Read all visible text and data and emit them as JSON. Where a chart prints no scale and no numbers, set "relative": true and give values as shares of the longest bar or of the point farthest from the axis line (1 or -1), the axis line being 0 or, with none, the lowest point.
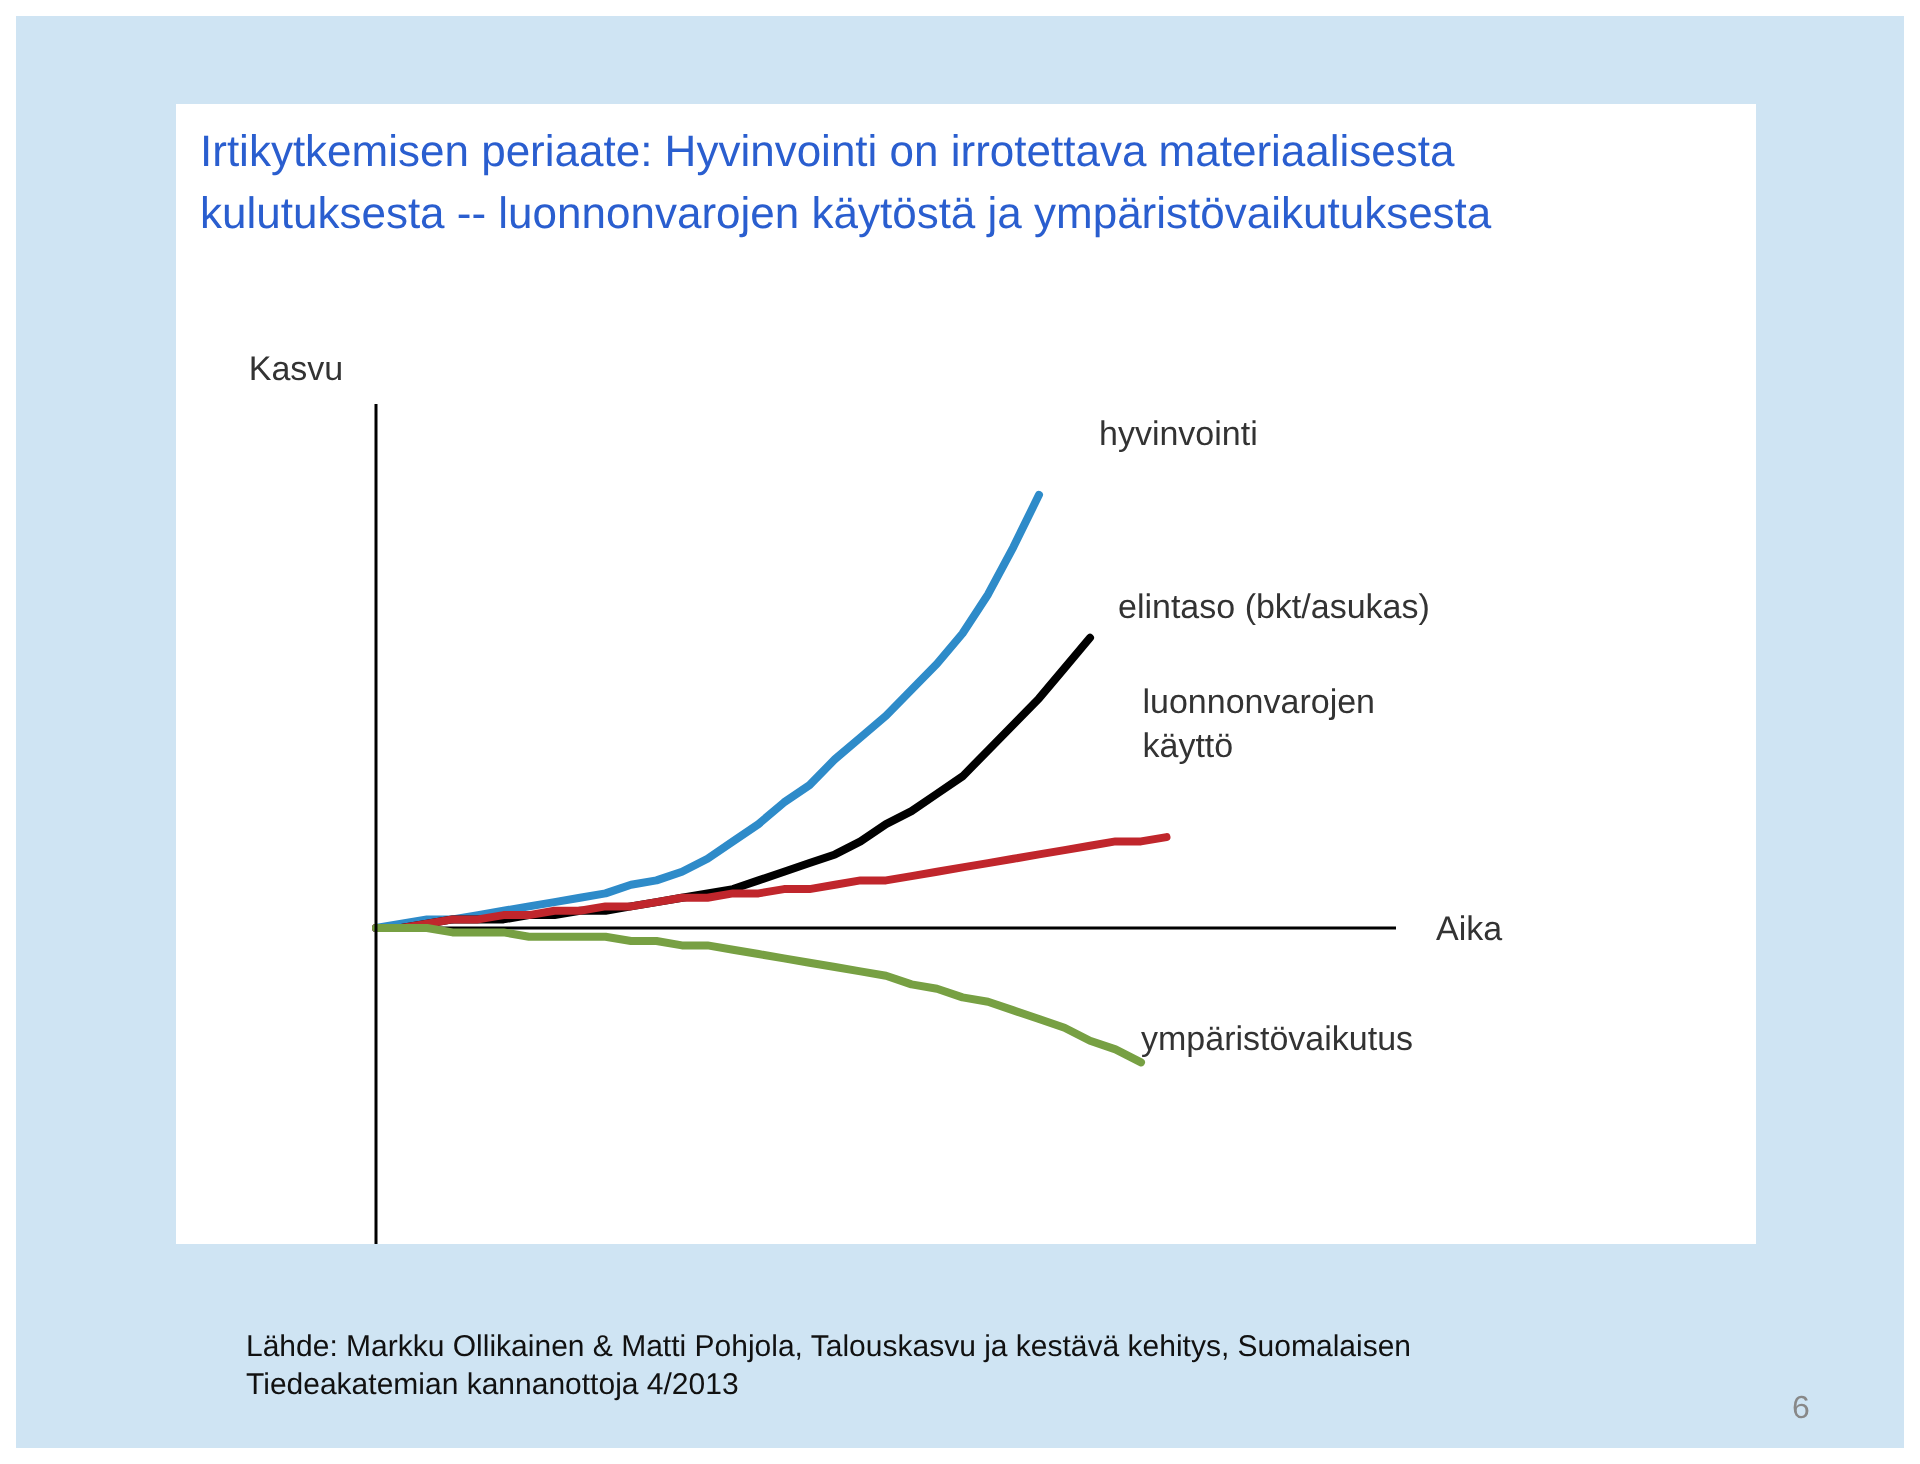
{
  "chart_data": {
    "type": "line",
    "relative": true,
    "title": "Irtikytkemisen periaate: Hyvinvointi on irrotettava materiaalisesta kulutuksesta -- luonnonvarojen käytöstä ja ympäristövaikutuksesta",
    "xlabel": "Aika",
    "ylabel": "Kasvu",
    "categories": [
      null,
      null,
      null,
      null,
      null,
      null,
      null,
      null,
      null,
      null,
      null,
      null,
      null,
      null,
      null,
      null,
      null,
      null,
      null,
      null,
      null,
      null,
      null,
      null,
      null,
      null,
      null,
      null,
      null,
      null,
      null,
      null,
      null,
      null,
      null,
      null,
      null,
      null,
      null,
      null,
      null
    ],
    "series": [
      {
        "name": "hyvinvointi",
        "color": "#2e8bc9",
        "values": [
          0,
          0.01,
          0.02,
          0.02,
          0.03,
          0.04,
          0.05,
          0.06,
          0.07,
          0.08,
          0.1,
          0.11,
          0.13,
          0.16,
          0.2,
          0.24,
          0.29,
          0.33,
          0.39,
          0.44,
          0.49,
          0.55,
          0.61,
          0.68,
          0.77,
          0.88,
          1,
          null,
          null,
          null,
          null,
          null,
          null,
          null,
          null,
          null,
          null,
          null,
          null,
          null,
          null
        ]
      },
      {
        "name": "elintaso (bkt/asukas)",
        "color": "#000000",
        "values": [
          0,
          0,
          0.01,
          0.02,
          0.02,
          0.02,
          0.03,
          0.03,
          0.04,
          0.04,
          0.05,
          0.06,
          0.07,
          0.08,
          0.09,
          0.11,
          0.13,
          0.15,
          0.17,
          0.2,
          0.24,
          0.27,
          0.31,
          0.35,
          0.41,
          0.47,
          0.53,
          0.6,
          0.67,
          null,
          null,
          null,
          null,
          null,
          null,
          null,
          null,
          null,
          null,
          null,
          null
        ]
      },
      {
        "name": "luonnonvarojen käyttö",
        "color": "#c0262c",
        "values": [
          0,
          0,
          0.01,
          0.02,
          0.02,
          0.03,
          0.03,
          0.04,
          0.04,
          0.05,
          0.05,
          0.06,
          0.07,
          0.07,
          0.08,
          0.08,
          0.09,
          0.09,
          0.1,
          0.11,
          0.11,
          0.12,
          0.13,
          0.14,
          0.15,
          0.16,
          0.17,
          0.18,
          0.19,
          0.2,
          0.2,
          0.21,
          null,
          null,
          null,
          null,
          null,
          null,
          null,
          null,
          null
        ]
      },
      {
        "name": "ympäristövaikutus",
        "color": "#77a043",
        "values": [
          0,
          0,
          0,
          -0.01,
          -0.01,
          -0.01,
          -0.02,
          -0.02,
          -0.02,
          -0.02,
          -0.03,
          -0.03,
          -0.04,
          -0.04,
          -0.05,
          -0.06,
          -0.07,
          -0.08,
          -0.09,
          -0.1,
          -0.11,
          -0.13,
          -0.14,
          -0.16,
          -0.17,
          -0.19,
          -0.21,
          -0.23,
          -0.26,
          -0.28,
          -0.31,
          null,
          null,
          null,
          null,
          null,
          null,
          null,
          null,
          null,
          null
        ]
      }
    ],
    "annotations": [
      "Lähde: Markku Ollikainen & Matti Pohjola, Talouskasvu ja kestävä kehitys, Suomalaisen Tiedeakatemian kannanottoja 4/2013",
      "6"
    ]
  }
}
